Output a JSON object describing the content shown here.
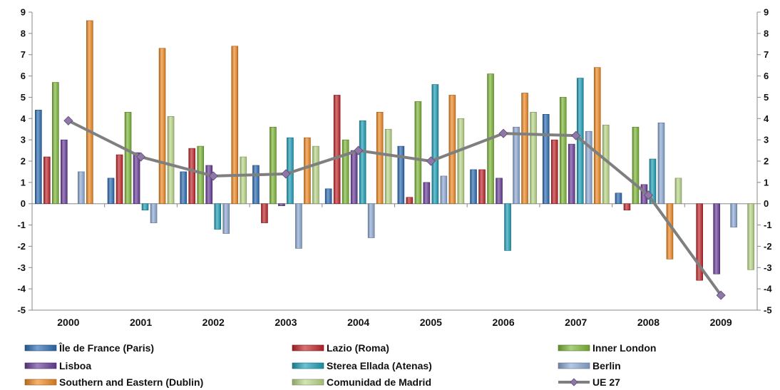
{
  "chart_data": {
    "type": "bar",
    "categories": [
      "2000",
      "2001",
      "2002",
      "2003",
      "2004",
      "2005",
      "2006",
      "2007",
      "2008",
      "2009"
    ],
    "ylim": [
      -5,
      9
    ],
    "y_ticks": [
      "-5",
      "-4",
      "-3",
      "-2",
      "-1",
      "0",
      "1",
      "2",
      "3",
      "4",
      "5",
      "6",
      "7",
      "8",
      "9"
    ],
    "secondary_axis": true,
    "grid": false,
    "legend_position": "bottom",
    "series": [
      {
        "name": "Île de France (Paris)",
        "color": "#2e6db4",
        "values": [
          4.4,
          1.2,
          1.5,
          1.8,
          0.7,
          2.7,
          1.6,
          4.2,
          0.5,
          null
        ]
      },
      {
        "name": "Lazio (Roma)",
        "color": "#c0282c",
        "values": [
          2.2,
          2.3,
          2.6,
          -0.9,
          5.1,
          0.3,
          1.6,
          3.0,
          -0.3,
          -3.6
        ]
      },
      {
        "name": "Inner London",
        "color": "#7fb83a",
        "values": [
          5.7,
          4.3,
          2.7,
          3.6,
          3.0,
          4.8,
          6.1,
          5.0,
          3.6,
          null
        ]
      },
      {
        "name": "Lisboa",
        "color": "#6a3f9a",
        "values": [
          3.0,
          2.4,
          1.8,
          -0.1,
          2.5,
          1.0,
          1.2,
          2.8,
          0.9,
          -3.3
        ]
      },
      {
        "name": "Sterea Ellada (Atenas)",
        "color": "#1ea0b8",
        "values": [
          null,
          -0.3,
          -1.2,
          3.1,
          3.9,
          5.6,
          -2.2,
          5.9,
          2.1,
          null
        ]
      },
      {
        "name": "Berlin",
        "color": "#8eaad6",
        "values": [
          1.5,
          -0.9,
          -1.4,
          -2.1,
          -1.6,
          1.3,
          3.6,
          3.4,
          3.8,
          -1.1
        ]
      },
      {
        "name": "Southern and Eastern (Dublin)",
        "color": "#f08a24",
        "values": [
          8.6,
          7.3,
          7.4,
          3.1,
          4.3,
          5.1,
          5.2,
          6.4,
          -2.6,
          null
        ]
      },
      {
        "name": "Comunidad de Madrid",
        "color": "#bcd98a",
        "values": [
          null,
          4.1,
          2.2,
          2.7,
          3.5,
          4.0,
          4.3,
          3.7,
          1.2,
          -3.1
        ]
      }
    ],
    "line_series": {
      "name": "UE 27",
      "color": "#7f7f7f",
      "values": [
        3.9,
        2.2,
        1.3,
        1.4,
        2.5,
        2.0,
        3.3,
        3.2,
        0.4,
        -4.3
      ]
    }
  }
}
